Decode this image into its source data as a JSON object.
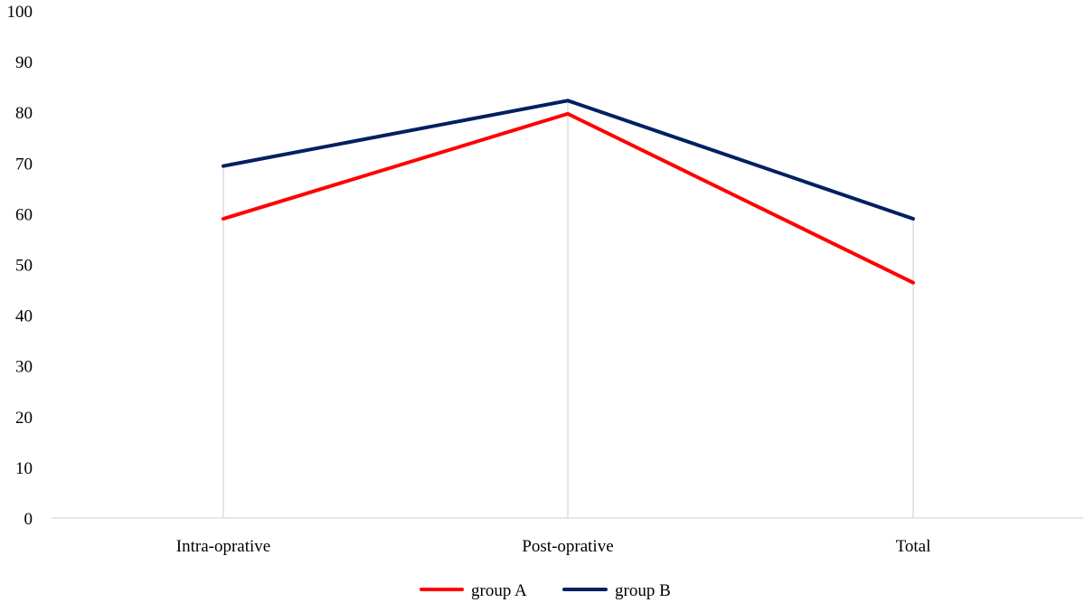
{
  "chart_data": {
    "type": "line",
    "categories": [
      "Intra-oprative",
      "Post-oprative",
      "Total"
    ],
    "series": [
      {
        "name": "group A",
        "values": [
          59,
          79.7,
          46.4
        ],
        "color": "#ff0000"
      },
      {
        "name": "group B",
        "values": [
          69.4,
          82.3,
          59
        ],
        "color": "#002060"
      }
    ],
    "ylim": [
      0,
      100
    ],
    "yticks": [
      0,
      10,
      20,
      30,
      40,
      50,
      60,
      70,
      80,
      90,
      100
    ],
    "grid": "vertical drop lines at categories",
    "legend_position": "bottom",
    "title": "",
    "xlabel": "",
    "ylabel": ""
  }
}
